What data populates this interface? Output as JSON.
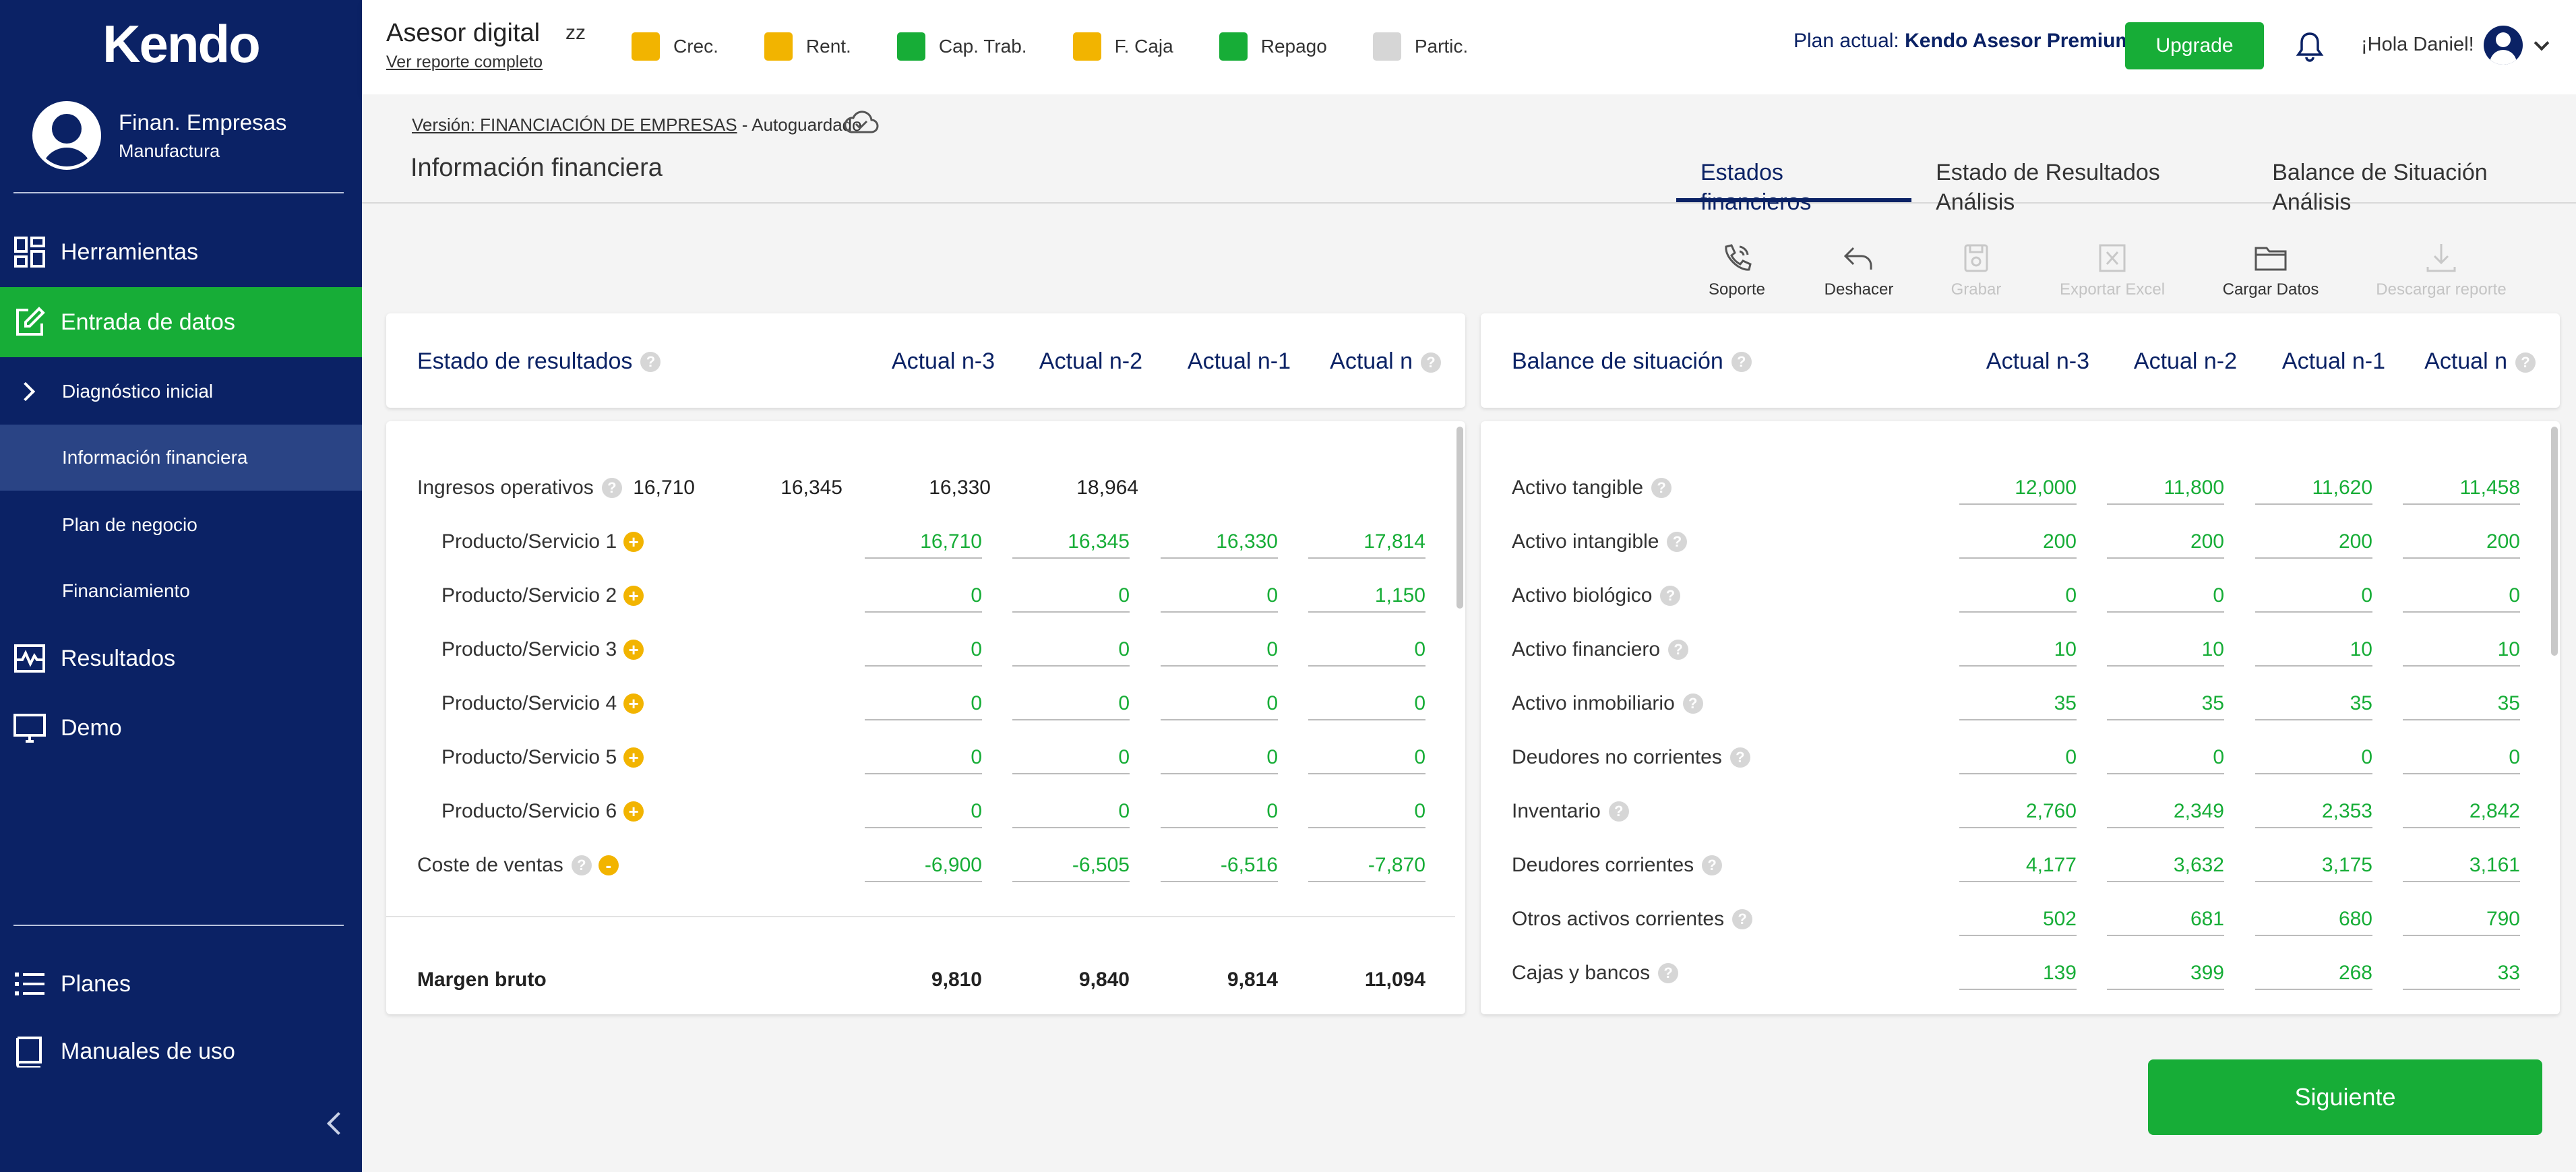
{
  "sidebar": {
    "logo": "Kendo",
    "profile": {
      "name": "Finan. Empresas",
      "sector": "Manufactura"
    },
    "nav": {
      "herramientas": "Herramientas",
      "entrada": "Entrada de datos",
      "diagnostico": "Diagnóstico inicial",
      "informacion": "Información financiera",
      "plan_negocio": "Plan de negocio",
      "financiamiento": "Financiamiento",
      "resultados": "Resultados",
      "demo": "Demo",
      "planes": "Planes",
      "manuales": "Manuales de uso"
    }
  },
  "topbar": {
    "title": "Asesor digital",
    "code": "zz",
    "report_link": "Ver reporte completo",
    "indicators": [
      {
        "label": "Crec.",
        "color": "#f2b400"
      },
      {
        "label": "Rent.",
        "color": "#f2b400"
      },
      {
        "label": "Cap. Trab.",
        "color": "#17ad37"
      },
      {
        "label": "F. Caja",
        "color": "#f2b400"
      },
      {
        "label": "Repago",
        "color": "#17ad37"
      },
      {
        "label": "Partic.",
        "color": "#d6d6d6"
      }
    ],
    "plan_label": "Plan actual:",
    "plan_name": "Kendo Asesor Premium",
    "upgrade": "Upgrade",
    "greeting": "¡Hola Daniel!"
  },
  "subheader": {
    "version_link": "Versión: FINANCIACIÓN DE EMPRESAS",
    "version_status": " - Autoguardado",
    "page_title": "Información financiera",
    "tabs": [
      "Estados financieros",
      "Estado de Resultados Análisis",
      "Balance de Situación Análisis"
    ]
  },
  "toolbar": {
    "soporte": "Soporte",
    "deshacer": "Deshacer",
    "grabar": "Grabar",
    "exportar": "Exportar Excel",
    "cargar": "Cargar Datos",
    "descargar": "Descargar reporte"
  },
  "income": {
    "title": "Estado de resultados",
    "columns": [
      "Actual n-3",
      "Actual n-2",
      "Actual n-1",
      "Actual n"
    ],
    "rows": [
      {
        "label": "Ingresos operativos",
        "values": [
          "16,710",
          "16,345",
          "16,330",
          "18,964"
        ]
      },
      {
        "label": "Producto/Servicio 1",
        "values": [
          "16,710",
          "16,345",
          "16,330",
          "17,814"
        ]
      },
      {
        "label": "Producto/Servicio 2",
        "values": [
          "0",
          "0",
          "0",
          "1,150"
        ]
      },
      {
        "label": "Producto/Servicio 3",
        "values": [
          "0",
          "0",
          "0",
          "0"
        ]
      },
      {
        "label": "Producto/Servicio 4",
        "values": [
          "0",
          "0",
          "0",
          "0"
        ]
      },
      {
        "label": "Producto/Servicio 5",
        "values": [
          "0",
          "0",
          "0",
          "0"
        ]
      },
      {
        "label": "Producto/Servicio 6",
        "values": [
          "0",
          "0",
          "0",
          "0"
        ]
      },
      {
        "label": "Coste de ventas",
        "values": [
          "-6,900",
          "-6,505",
          "-6,516",
          "-7,870"
        ]
      }
    ],
    "margin": {
      "label": "Margen bruto",
      "values": [
        "9,810",
        "9,840",
        "9,814",
        "11,094"
      ]
    }
  },
  "balance": {
    "title": "Balance de situación",
    "columns": [
      "Actual n-3",
      "Actual n-2",
      "Actual n-1",
      "Actual n"
    ],
    "rows": [
      {
        "label": "Activo tangible",
        "values": [
          "12,000",
          "11,800",
          "11,620",
          "11,458"
        ]
      },
      {
        "label": "Activo intangible",
        "values": [
          "200",
          "200",
          "200",
          "200"
        ]
      },
      {
        "label": "Activo biológico",
        "values": [
          "0",
          "0",
          "0",
          "0"
        ]
      },
      {
        "label": "Activo financiero",
        "values": [
          "10",
          "10",
          "10",
          "10"
        ]
      },
      {
        "label": "Activo inmobiliario",
        "values": [
          "35",
          "35",
          "35",
          "35"
        ]
      },
      {
        "label": "Deudores no corrientes",
        "values": [
          "0",
          "0",
          "0",
          "0"
        ]
      },
      {
        "label": "Inventario",
        "values": [
          "2,760",
          "2,349",
          "2,353",
          "2,842"
        ]
      },
      {
        "label": "Deudores corrientes",
        "values": [
          "4,177",
          "3,632",
          "3,175",
          "3,161"
        ]
      },
      {
        "label": "Otros activos corrientes",
        "values": [
          "502",
          "681",
          "680",
          "790"
        ]
      },
      {
        "label": "Cajas y bancos",
        "values": [
          "139",
          "399",
          "268",
          "33"
        ]
      }
    ]
  },
  "next_button": "Siguiente"
}
